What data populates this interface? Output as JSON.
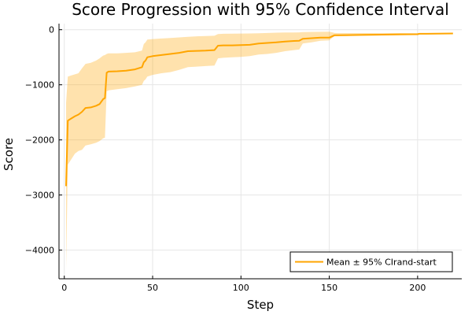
{
  "chart_data": {
    "type": "line",
    "title": "Score Progression with 95% Confidence Interval",
    "xlabel": "Step",
    "ylabel": "Score",
    "xlim": [
      -3,
      225
    ],
    "ylim": [
      -4520,
      110
    ],
    "xticks": [
      0,
      50,
      100,
      150,
      200
    ],
    "yticks": [
      0,
      -1000,
      -2000,
      -3000,
      -4000
    ],
    "xtick_labels": [
      "0",
      "50",
      "100",
      "150",
      "200"
    ],
    "ytick_labels": [
      "0",
      "−1000",
      "−2000",
      "−3000",
      "−4000"
    ],
    "grid": true,
    "legend_position": "bottom-right",
    "colors": {
      "line": "#FFA500",
      "band": "#FFA500",
      "band_opacity": 0.32
    },
    "series": [
      {
        "name": "Mean ± 95% CIrand-start",
        "x": [
          1,
          2,
          4,
          6,
          8,
          10,
          12,
          15,
          18,
          20,
          22,
          23,
          24,
          25,
          30,
          35,
          40,
          44,
          45,
          46,
          47,
          50,
          55,
          60,
          65,
          70,
          75,
          80,
          85,
          87,
          90,
          95,
          100,
          105,
          110,
          115,
          120,
          125,
          130,
          133,
          135,
          140,
          145,
          150,
          152,
          153,
          155,
          160,
          170,
          180,
          190,
          200,
          201,
          205,
          210,
          215,
          220
        ],
        "y": [
          -2840,
          -1650,
          -1610,
          -1570,
          -1540,
          -1490,
          -1420,
          -1410,
          -1380,
          -1350,
          -1260,
          -1240,
          -780,
          -760,
          -755,
          -745,
          -720,
          -680,
          -590,
          -560,
          -500,
          -480,
          -460,
          -440,
          -420,
          -390,
          -385,
          -380,
          -370,
          -290,
          -285,
          -285,
          -280,
          -275,
          -250,
          -240,
          -230,
          -215,
          -205,
          -200,
          -165,
          -155,
          -145,
          -145,
          -115,
          -100,
          -100,
          -98,
          -95,
          -90,
          -85,
          -83,
          -75,
          -75,
          -72,
          -70,
          -68
        ],
        "lower": [
          -4350,
          -2450,
          -2350,
          -2250,
          -2200,
          -2180,
          -2100,
          -2080,
          -2050,
          -2020,
          -1970,
          -1960,
          -1120,
          -1100,
          -1080,
          -1060,
          -1030,
          -1000,
          -930,
          -900,
          -850,
          -820,
          -790,
          -770,
          -730,
          -680,
          -670,
          -660,
          -650,
          -520,
          -510,
          -500,
          -495,
          -480,
          -450,
          -440,
          -420,
          -390,
          -370,
          -360,
          -250,
          -230,
          -200,
          -195,
          -140,
          -120,
          -118,
          -115,
          -110,
          -105,
          -100,
          -95,
          -80,
          -80,
          -76,
          -74,
          -72
        ],
        "upper": [
          -1330,
          -850,
          -830,
          -810,
          -790,
          -700,
          -620,
          -600,
          -560,
          -520,
          -470,
          -460,
          -440,
          -430,
          -430,
          -420,
          -410,
          -380,
          -260,
          -230,
          -180,
          -170,
          -160,
          -150,
          -140,
          -130,
          -120,
          -115,
          -110,
          -80,
          -75,
          -72,
          -70,
          -68,
          -65,
          -60,
          -55,
          -52,
          -50,
          -48,
          -45,
          -40,
          -38,
          -36,
          -50,
          -60,
          -62,
          -62,
          -62,
          -62,
          -62,
          -62,
          -65,
          -66,
          -66,
          -65,
          -64
        ]
      }
    ]
  }
}
